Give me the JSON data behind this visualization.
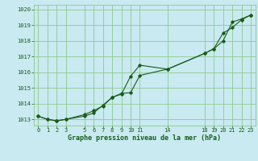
{
  "title": "Graphe pression niveau de la mer (hPa)",
  "background_color": "#c8eaf0",
  "grid_color": "#90c890",
  "line_color": "#1a5c1a",
  "text_color": "#1a5c1a",
  "ylim": [
    1012.6,
    1020.3
  ],
  "yticks": [
    1013,
    1014,
    1015,
    1016,
    1017,
    1018,
    1019,
    1020
  ],
  "xticks": [
    0,
    1,
    2,
    3,
    5,
    6,
    7,
    8,
    9,
    10,
    11,
    14,
    18,
    19,
    20,
    21,
    22,
    23
  ],
  "xlim": [
    -0.5,
    23.5
  ],
  "line1_x": [
    0,
    1,
    2,
    3,
    5,
    6,
    7,
    8,
    9,
    10,
    11,
    14,
    18,
    19,
    20,
    21,
    22,
    23
  ],
  "line1_y": [
    1013.2,
    1013.0,
    1012.9,
    1013.0,
    1013.3,
    1013.55,
    1013.85,
    1014.4,
    1014.6,
    1015.75,
    1016.45,
    1016.2,
    1017.2,
    1017.5,
    1018.0,
    1019.2,
    1019.4,
    1019.65
  ],
  "line2_x": [
    0,
    1,
    2,
    3,
    5,
    6,
    7,
    8,
    9,
    10,
    11,
    14,
    18,
    19,
    20,
    21,
    22,
    23
  ],
  "line2_y": [
    1013.2,
    1013.0,
    1012.9,
    1013.0,
    1013.2,
    1013.4,
    1013.9,
    1014.4,
    1014.65,
    1014.7,
    1015.8,
    1016.2,
    1017.2,
    1017.5,
    1018.5,
    1018.85,
    1019.35,
    1019.65
  ],
  "figsize": [
    3.2,
    2.0
  ],
  "dpi": 100
}
